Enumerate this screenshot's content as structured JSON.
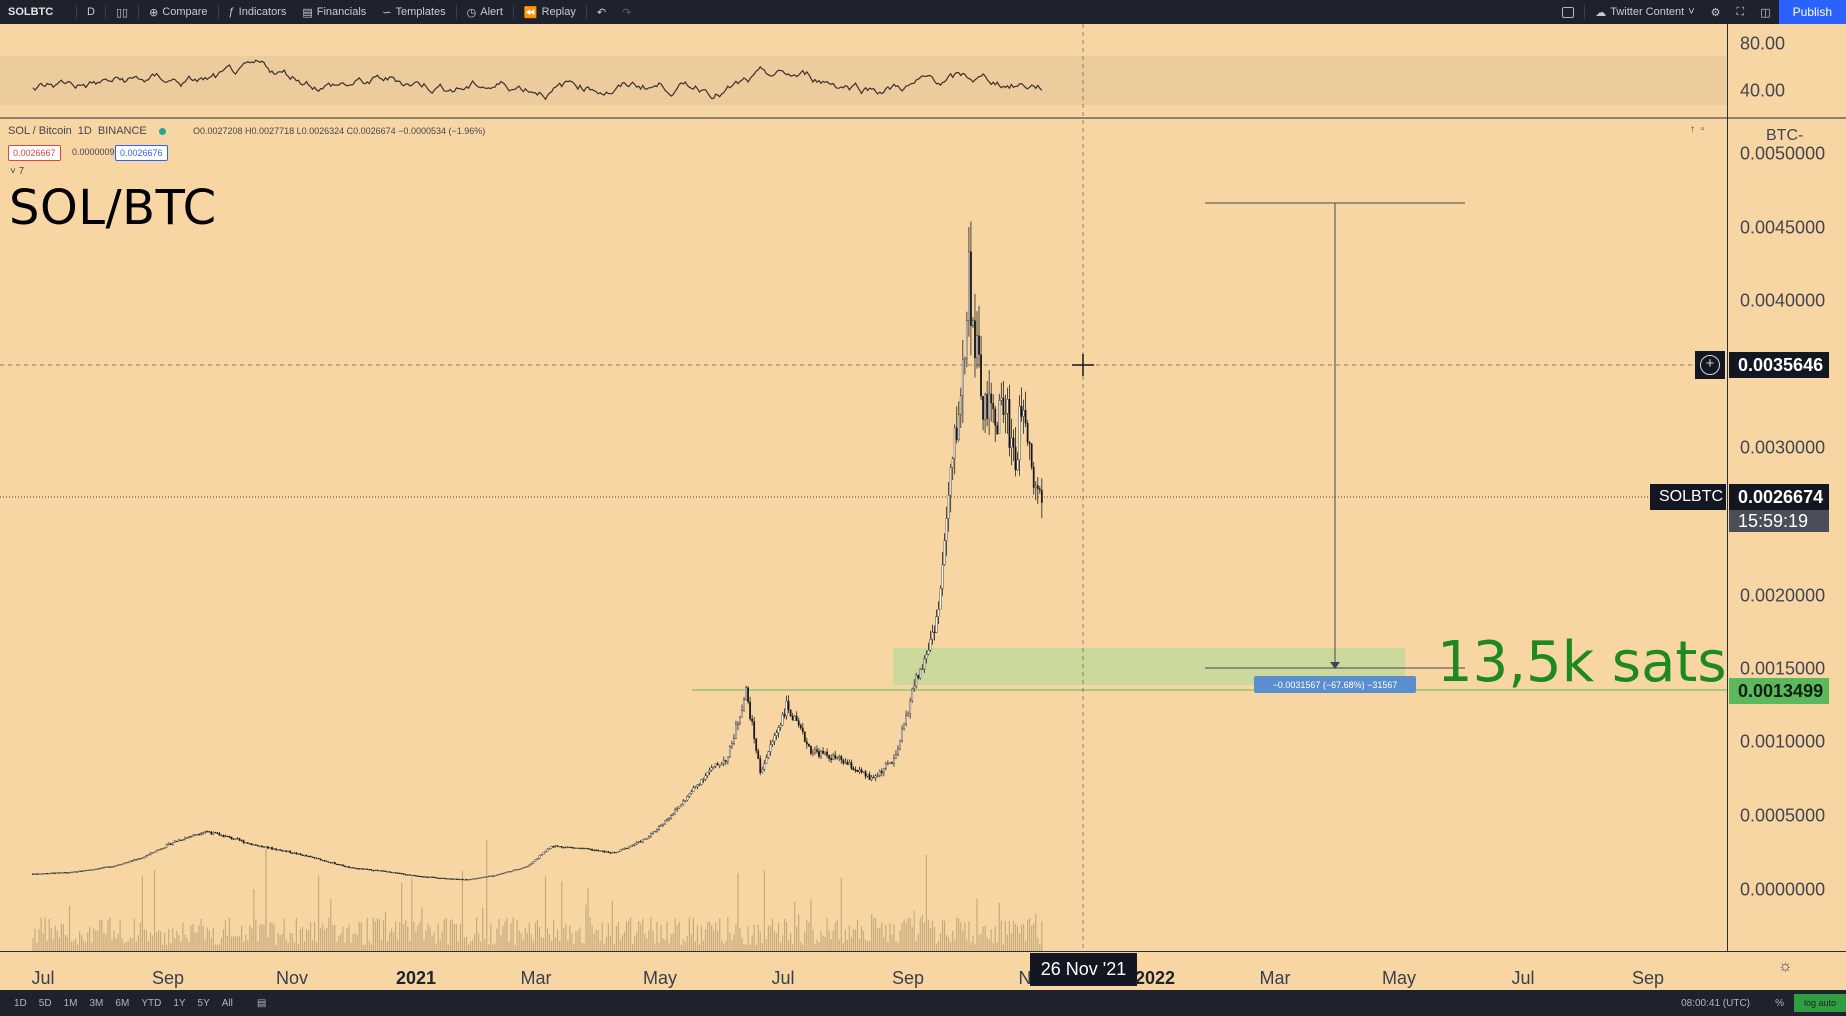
{
  "toolbar": {
    "symbol": "SOLBTC",
    "interval": "D",
    "compare": "Compare",
    "indicators": "Indicators",
    "financials": "Financials",
    "templates": "Templates",
    "alert": "Alert",
    "replay": "Replay",
    "layout_name": "Twitter Content",
    "publish": "Publish"
  },
  "legend": {
    "pair": "SOL / Bitcoin",
    "interval": "1D",
    "exchange": "BINANCE",
    "ohlc": "O0.0027208 H0.0027718 L0.0026324 C0.0026674 −0.0000534 (−1.96%)",
    "sell_price": "0.0026667",
    "spread": "0.0000009",
    "buy_price": "0.0026676",
    "indicators_count": "7"
  },
  "annotations": {
    "title": "SOL/BTC",
    "target": "13,5k sats",
    "measure": "−0.0031567 (−67.68%) −31567"
  },
  "price_axis": {
    "unit": "BTC",
    "labels": [
      "0.0050000",
      "0.0045000",
      "0.0040000",
      "0.0030000",
      "0.0020000",
      "0.0015000",
      "0.0010000",
      "0.0005000",
      "0.0000000"
    ],
    "rsi_labels": [
      "80.00",
      "40.00"
    ],
    "crosshair_price": "0.0035646",
    "symbol_tag": "SOLBTC",
    "last_price": "0.0026674",
    "countdown": "15:59:19",
    "target_price": "0.0013499"
  },
  "time_axis": {
    "labels": [
      {
        "text": "Jul",
        "bold": false
      },
      {
        "text": "Sep",
        "bold": false
      },
      {
        "text": "Nov",
        "bold": false
      },
      {
        "text": "2021",
        "bold": true
      },
      {
        "text": "Mar",
        "bold": false
      },
      {
        "text": "May",
        "bold": false
      },
      {
        "text": "Jul",
        "bold": false
      },
      {
        "text": "Sep",
        "bold": false
      },
      {
        "text": "N",
        "bold": false
      },
      {
        "text": "2022",
        "bold": true
      },
      {
        "text": "Mar",
        "bold": false
      },
      {
        "text": "May",
        "bold": false
      },
      {
        "text": "Jul",
        "bold": false
      },
      {
        "text": "Sep",
        "bold": false
      }
    ],
    "crosshair_date": "26 Nov '21"
  },
  "bottom": {
    "ranges": [
      "1D",
      "5D",
      "1M",
      "3M",
      "6M",
      "YTD",
      "1Y",
      "5Y",
      "All"
    ],
    "clock": "08:00:41 (UTC)",
    "percent": "%",
    "log": "log",
    "auto": "auto"
  },
  "colors": {
    "background": "#f8d6a4",
    "accent": "#2962ff",
    "target_zone": "#b9d8a0",
    "target_text": "#1e8a1e"
  },
  "chart_data": {
    "type": "candlestick",
    "ylim": [
      0,
      0.005
    ],
    "close": [
      [
        "2020-06-01",
        0.00011
      ],
      [
        "2020-06-20",
        0.00012
      ],
      [
        "2020-07-10",
        0.00016
      ],
      [
        "2020-07-25",
        0.00022
      ],
      [
        "2020-08-10",
        0.00033
      ],
      [
        "2020-08-25",
        0.0004
      ],
      [
        "2020-09-05",
        0.00036
      ],
      [
        "2020-09-20",
        0.0003
      ],
      [
        "2020-10-05",
        0.00026
      ],
      [
        "2020-10-20",
        0.00021
      ],
      [
        "2020-11-05",
        0.00015
      ],
      [
        "2020-11-20",
        0.00013
      ],
      [
        "2020-12-05",
        0.0001
      ],
      [
        "2020-12-20",
        8e-05
      ],
      [
        "2021-01-01",
        7e-05
      ],
      [
        "2021-01-15",
        0.0001
      ],
      [
        "2021-01-31",
        0.00016
      ],
      [
        "2021-02-12",
        0.0003
      ],
      [
        "2021-02-28",
        0.00028
      ],
      [
        "2021-03-15",
        0.00025
      ],
      [
        "2021-03-31",
        0.00035
      ],
      [
        "2021-04-15",
        0.00055
      ],
      [
        "2021-04-30",
        0.0008
      ],
      [
        "2021-05-10",
        0.0009
      ],
      [
        "2021-05-19",
        0.00135
      ],
      [
        "2021-05-26",
        0.0008
      ],
      [
        "2021-06-08",
        0.00125
      ],
      [
        "2021-06-20",
        0.00095
      ],
      [
        "2021-07-05",
        0.00088
      ],
      [
        "2021-07-20",
        0.00075
      ],
      [
        "2021-08-01",
        0.0009
      ],
      [
        "2021-08-10",
        0.0014
      ],
      [
        "2021-08-15",
        0.00155
      ],
      [
        "2021-08-22",
        0.0019
      ],
      [
        "2021-08-28",
        0.0028
      ],
      [
        "2021-09-03",
        0.0035
      ],
      [
        "2021-09-06",
        0.0042
      ],
      [
        "2021-09-09",
        0.0037
      ],
      [
        "2021-09-13",
        0.0033
      ],
      [
        "2021-09-18",
        0.0032
      ],
      [
        "2021-09-24",
        0.0033
      ],
      [
        "2021-09-29",
        0.0029
      ],
      [
        "2021-10-03",
        0.0034
      ],
      [
        "2021-10-08",
        0.0028
      ],
      [
        "2021-10-12",
        0.00267
      ]
    ]
  }
}
